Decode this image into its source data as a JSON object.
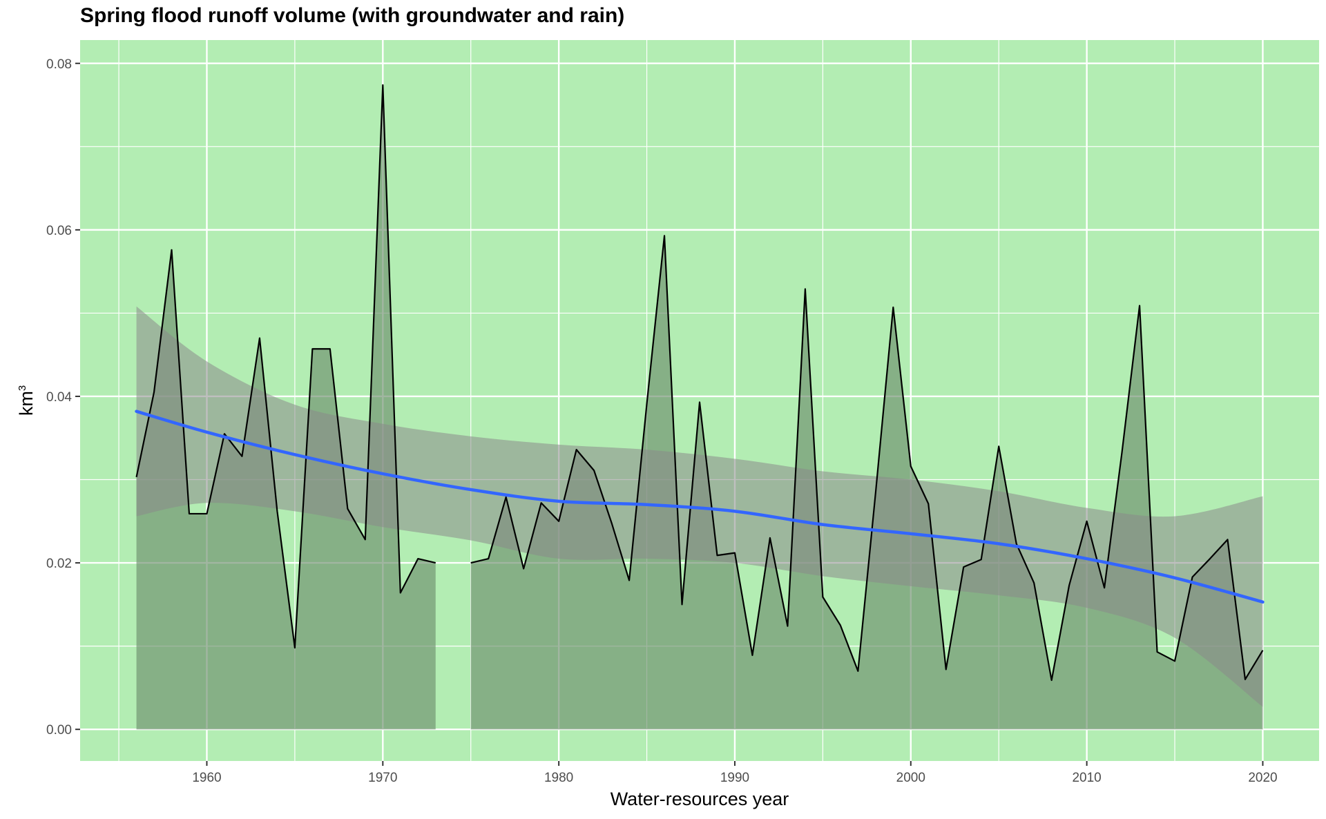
{
  "chart_data": {
    "type": "area",
    "title": "Spring flood runoff volume (with groundwater and rain)",
    "xlabel": "Water-resources year",
    "ylabel": "km",
    "ylabel_superscript": "3",
    "xlim": [
      1952.8,
      2023.2
    ],
    "ylim": [
      -0.0038,
      0.0828
    ],
    "x_ticks": [
      1960,
      1970,
      1980,
      1990,
      2000,
      2010,
      2020
    ],
    "y_ticks": [
      0.0,
      0.02,
      0.04,
      0.06,
      0.08
    ],
    "y_tick_labels": [
      "0.00",
      "0.02",
      "0.04",
      "0.06",
      "0.08"
    ],
    "grid": true,
    "colors": {
      "panel_background": "#b3edb3",
      "grid_line": "#ffffff",
      "area_fill": "#6f8f6f",
      "series_line": "#000000",
      "trend_line": "#3366ff",
      "confidence_band": "#8a8a8a"
    },
    "series": [
      {
        "type": "area_line",
        "x": [
          1956,
          1957,
          1958,
          1959,
          1960,
          1961,
          1962,
          1963,
          1964,
          1965,
          1966,
          1967,
          1968,
          1969,
          1970,
          1971,
          1972,
          1973,
          1974,
          1975,
          1976,
          1977,
          1978,
          1979,
          1980,
          1981,
          1982,
          1983,
          1984,
          1985,
          1986,
          1987,
          1988,
          1989,
          1990,
          1991,
          1992,
          1993,
          1994,
          1995,
          1996,
          1997,
          1998,
          1999,
          2000,
          2001,
          2002,
          2003,
          2004,
          2005,
          2006,
          2007,
          2008,
          2009,
          2010,
          2011,
          2012,
          2013,
          2014,
          2015,
          2016,
          2017,
          2018,
          2019,
          2020
        ],
        "y": [
          0.0303,
          0.0405,
          0.0576,
          0.0259,
          0.0259,
          0.0355,
          0.0328,
          0.047,
          0.0262,
          0.0098,
          0.0457,
          0.0457,
          0.0265,
          0.0228,
          0.0774,
          0.0164,
          0.0205,
          0.02,
          null,
          0.02,
          0.0205,
          0.0279,
          0.0193,
          0.0272,
          0.025,
          0.0336,
          0.0311,
          0.0248,
          0.0179,
          0.0391,
          0.0593,
          0.015,
          0.0393,
          0.0209,
          0.0212,
          0.0089,
          0.023,
          0.0124,
          0.0529,
          0.0159,
          0.0125,
          0.007,
          0.0284,
          0.0507,
          0.0316,
          0.0271,
          0.0072,
          0.0195,
          0.0204,
          0.034,
          0.0223,
          0.0176,
          0.0059,
          0.0173,
          0.025,
          0.017,
          0.0333,
          0.0509,
          0.0093,
          0.0082,
          0.0183,
          0.0205,
          0.0228,
          0.006,
          0.0095
        ]
      },
      {
        "type": "smooth_trend",
        "x": [
          1956,
          1960,
          1965,
          1970,
          1975,
          1980,
          1985,
          1990,
          1995,
          2000,
          2005,
          2010,
          2015,
          2020
        ],
        "y": [
          0.0382,
          0.0357,
          0.033,
          0.0307,
          0.0288,
          0.0274,
          0.027,
          0.0262,
          0.0246,
          0.0235,
          0.0223,
          0.0205,
          0.0182,
          0.0153
        ],
        "band_lower": [
          0.0256,
          0.0272,
          0.0262,
          0.0243,
          0.0227,
          0.0205,
          0.0205,
          0.02,
          0.0184,
          0.0172,
          0.0161,
          0.0146,
          0.011,
          0.0027
        ],
        "band_upper": [
          0.0508,
          0.0442,
          0.039,
          0.0367,
          0.0352,
          0.0342,
          0.0336,
          0.0325,
          0.031,
          0.03,
          0.0286,
          0.0266,
          0.0256,
          0.028
        ]
      }
    ]
  }
}
